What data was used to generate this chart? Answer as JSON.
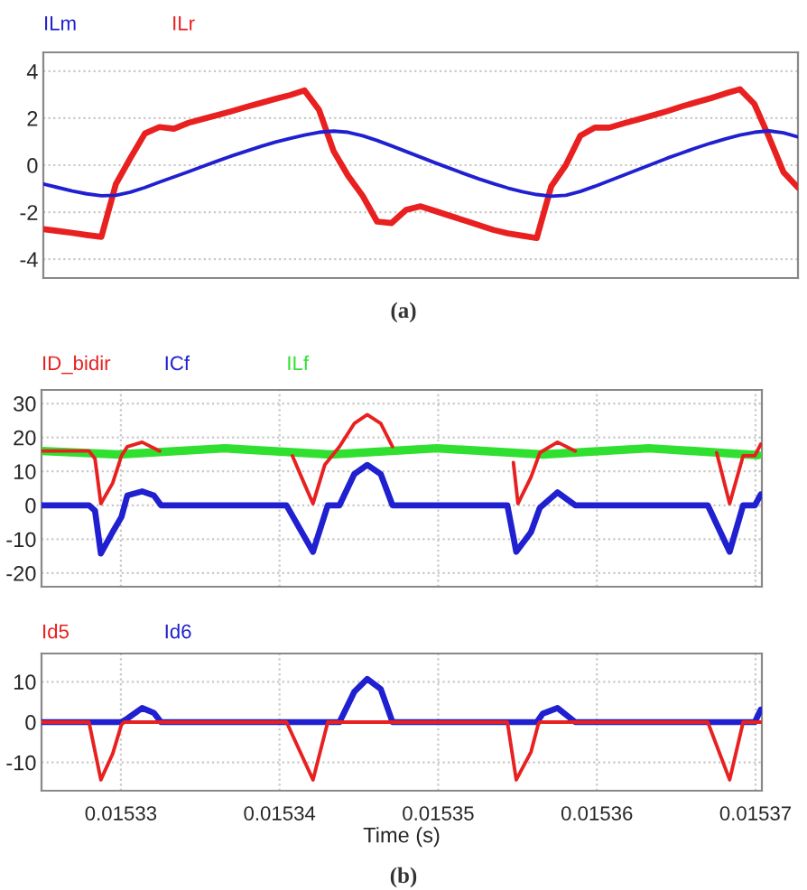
{
  "chart_data": [
    {
      "type": "line",
      "categories": [
        null,
        null,
        null,
        null,
        null,
        null,
        null,
        null,
        null,
        null,
        null,
        null,
        null,
        null,
        null,
        null,
        null,
        null,
        null,
        null,
        null,
        null,
        null,
        null,
        null,
        null,
        null,
        null,
        null,
        null,
        null,
        null,
        null,
        null,
        null,
        null,
        null,
        null,
        null,
        null,
        null,
        null,
        null,
        null,
        null,
        null,
        null,
        null,
        null,
        null,
        null,
        null,
        null
      ],
      "series": [
        {
          "name": "ILm",
          "color": "#2020d0",
          "values": [
            -0.8,
            -0.95,
            -1.1,
            -1.22,
            -1.3,
            -1.28,
            -1.15,
            -0.95,
            -0.72,
            -0.5,
            -0.28,
            -0.05,
            0.18,
            0.4,
            0.6,
            0.8,
            0.98,
            1.14,
            1.28,
            1.4,
            1.45,
            1.4,
            1.25,
            1.05,
            0.82,
            0.58,
            0.34,
            0.1,
            -0.13,
            -0.36,
            -0.58,
            -0.78,
            -0.97,
            -1.13,
            -1.25,
            -1.32,
            -1.28,
            -1.12,
            -0.9,
            -0.66,
            -0.42,
            -0.18,
            0.06,
            0.3,
            0.52,
            0.74,
            0.94,
            1.12,
            1.28,
            1.4,
            1.46,
            1.38,
            1.2
          ]
        },
        {
          "name": "ILr",
          "color": "#e82020",
          "values": [
            -2.72,
            -2.8,
            -2.88,
            -2.97,
            -3.05,
            -0.8,
            0.3,
            1.35,
            1.62,
            1.55,
            1.8,
            1.97,
            2.13,
            2.3,
            2.48,
            2.65,
            2.82,
            2.98,
            3.18,
            2.35,
            0.6,
            -0.45,
            -1.3,
            -2.4,
            -2.46,
            -1.9,
            -1.75,
            -1.95,
            -2.15,
            -2.35,
            -2.55,
            -2.75,
            -2.9,
            -3.0,
            -3.1,
            -0.9,
            0.0,
            1.25,
            1.6,
            1.6,
            1.78,
            1.95,
            2.12,
            2.3,
            2.5,
            2.68,
            2.85,
            3.05,
            3.23,
            2.6,
            1.2,
            -0.3,
            -0.95
          ]
        }
      ],
      "ylim": [
        -4.8,
        4.8
      ],
      "yticks": [
        4,
        2,
        0,
        -2,
        -4
      ],
      "grid": "y",
      "legend": "top left",
      "tick_labels": "y",
      "annotations": [
        "(a)"
      ]
    },
    {
      "type": "line",
      "series": [
        {
          "name": "ID_bidir",
          "color": "#e82020",
          "x": [
            0.01532502,
            0.01532799,
            0.01532837,
            0.01532874,
            0.01532948,
            0.01533004,
            0.01533041,
            0.01533134,
            0.01533245,
            0.01534044,
            0.01534081,
            0.01534155,
            0.01534211,
            0.01534285,
            0.01534378,
            0.01534471,
            0.01534553,
            0.01534638,
            0.01534712,
            0.01535436,
            0.01535474,
            0.01535503,
            0.01535585,
            0.01535641,
            0.01535752,
            0.01535864,
            0.01536699,
            0.01536755,
            0.01536837,
            0.01536922,
            0.01536996,
            0.01537033
          ],
          "values": [
            16,
            16,
            13.7,
            0.5,
            6.5,
            14.6,
            17.3,
            18.6,
            16,
            null,
            14.6,
            6.5,
            0.5,
            11.9,
            17.3,
            24.1,
            26.7,
            24.1,
            17.3,
            null,
            12.6,
            0.5,
            8.3,
            15.5,
            18.6,
            16,
            null,
            15.5,
            0.5,
            14.6,
            14.6,
            18
          ]
        },
        {
          "name": "ICf",
          "color": "#2020d0",
          "x": [
            0.01532502,
            0.01532799,
            0.01532837,
            0.01532874,
            0.01532948,
            0.01533004,
            0.01533041,
            0.01533134,
            0.01533208,
            0.01533253,
            0.01534044,
            0.01534211,
            0.01534304,
            0.01534378,
            0.01534471,
            0.01534553,
            0.01534638,
            0.01534712,
            0.01535436,
            0.01535492,
            0.01535585,
            0.01535641,
            0.01535752,
            0.01535864,
            0.01536699,
            0.01536837,
            0.01536922,
            0.01536996,
            0.01537033
          ],
          "values": [
            0,
            0,
            -1.6,
            -14.2,
            -7.9,
            -3.4,
            2.9,
            4.1,
            2.9,
            0,
            0,
            -13.7,
            0,
            0,
            9.2,
            11.9,
            9.2,
            0,
            0,
            -13.7,
            -7.9,
            -0.7,
            3.8,
            0,
            0,
            -13.7,
            0,
            0,
            3.2
          ]
        },
        {
          "name": "ILf",
          "color": "#30e030",
          "x": [
            0.01532502,
            0.01532985,
            0.01533654,
            0.01534322,
            0.01534991,
            0.01535659,
            0.01536328,
            0.01537015
          ],
          "values": [
            16.0,
            15.0,
            16.8,
            15.0,
            16.8,
            15.0,
            16.8,
            14.8
          ]
        }
      ],
      "xlim": [
        0.015325,
        0.0153704
      ],
      "xticks": [
        0.01533,
        0.01534,
        0.01535,
        0.01536,
        0.01537
      ],
      "ylim": [
        -24,
        34
      ],
      "yticks": [
        30,
        20,
        10,
        0,
        -10,
        -20
      ],
      "grid": true,
      "legend": "top left",
      "tick_labels": "y"
    },
    {
      "type": "line",
      "series": [
        {
          "name": "Id5",
          "color": "#e82020",
          "x": [
            0.01532502,
            0.01532799,
            0.01532874,
            0.01532948,
            0.01533004,
            0.01533022,
            0.01534044,
            0.01534211,
            0.01534304,
            0.01535436,
            0.01535492,
            0.01535585,
            0.0153563,
            0.01535641,
            0.01536699,
            0.01536837,
            0.01536922,
            0.01537033
          ],
          "values": [
            0,
            0,
            -14.3,
            -7.9,
            -0.6,
            0,
            0,
            -14.3,
            0,
            0,
            -14.3,
            -7.4,
            -0.6,
            0,
            0,
            -14.3,
            0,
            0
          ]
        },
        {
          "name": "Id6",
          "color": "#2020d0",
          "x": [
            0.01532502,
            0.01533004,
            0.01533041,
            0.01533134,
            0.01533208,
            0.01533253,
            0.01534378,
            0.01534471,
            0.01534553,
            0.01534638,
            0.01534712,
            0.01535622,
            0.01535659,
            0.01535752,
            0.01535864,
            0.01536996,
            0.01537033
          ],
          "values": [
            0,
            0,
            0.9,
            3.5,
            2.3,
            0,
            0,
            7.5,
            10.7,
            8.2,
            0,
            0,
            2.1,
            3.5,
            0,
            0,
            3.1
          ]
        }
      ],
      "xlim": [
        0.015325,
        0.0153704
      ],
      "xticks": [
        0.01533,
        0.01534,
        0.01535,
        0.01536,
        0.01537
      ],
      "ylim": [
        -17,
        17
      ],
      "yticks": [
        10,
        0,
        -10
      ],
      "grid": true,
      "legend": "top left",
      "xlabel": "Time (s)",
      "annotations": [
        "(b)"
      ]
    }
  ]
}
